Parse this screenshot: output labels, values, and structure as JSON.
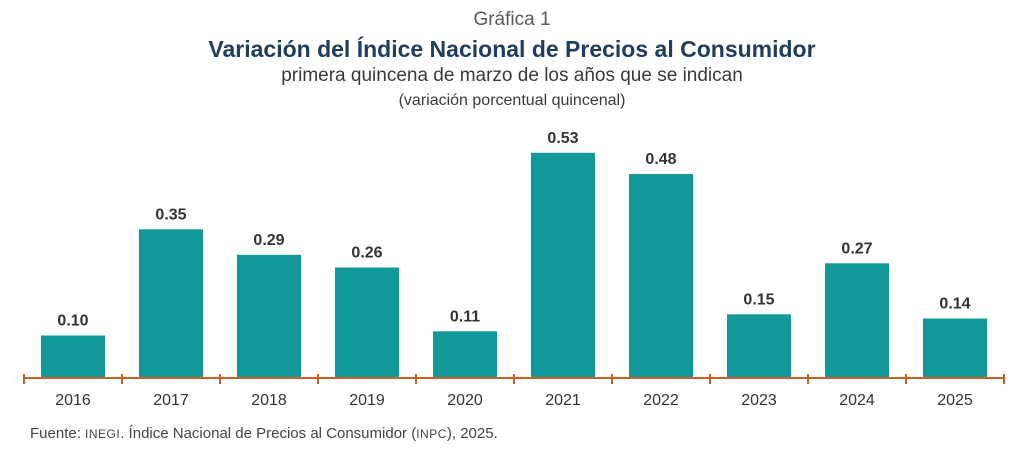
{
  "header": {
    "label": "Gráfica 1",
    "title": "Variación del Índice Nacional de Precios al Consumidor",
    "subtitle": "primera quincena de marzo de los años que se indican",
    "units": "(variación porcentual quincenal)"
  },
  "chart_data": {
    "type": "bar",
    "categories": [
      "2016",
      "2017",
      "2018",
      "2019",
      "2020",
      "2021",
      "2022",
      "2023",
      "2024",
      "2025"
    ],
    "series": [
      {
        "values": [
          0.1,
          0.35,
          0.29,
          0.26,
          0.11,
          0.53,
          0.48,
          0.15,
          0.27,
          0.14
        ],
        "data_labels": [
          "0.10",
          "0.35",
          "0.29",
          "0.26",
          "0.11",
          "0.53",
          "0.48",
          "0.15",
          "0.27",
          "0.14"
        ]
      }
    ],
    "title": "Variación del Índice Nacional de Precios al Consumidor",
    "subtitle": "primera quincena de marzo de los años que se indican",
    "ylabel": "(variación porcentual quincenal)",
    "ylim": [
      0,
      0.56
    ],
    "grid": false,
    "legend": "none"
  },
  "footnote": {
    "prefix": "Fuente: ",
    "org": "INEGI",
    "middle": ". Índice Nacional de Precios al Consumidor ",
    "index_open": "(",
    "index": "INPC",
    "suffix": "), 2025."
  },
  "colors": {
    "bar": "#14999a",
    "axis": "#c9602a",
    "title": "#1f3d5c"
  }
}
